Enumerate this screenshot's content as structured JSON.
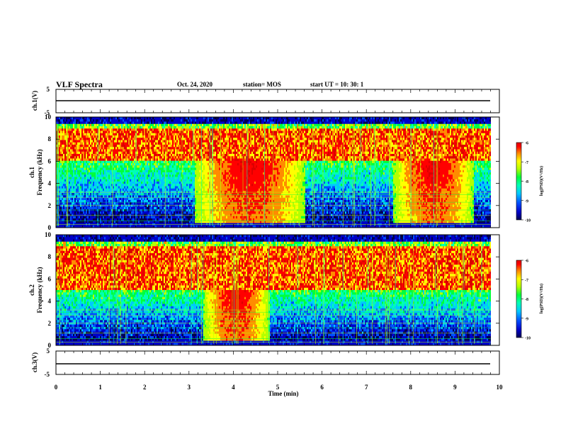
{
  "header": {
    "title": "VLF Spectra",
    "date": "Oct. 24, 2020",
    "station": "station= MOS",
    "start_time": "start  UT =   10: 30: 1"
  },
  "chart_data": [
    {
      "type": "line",
      "panel": "ch1-voltage",
      "ylabel": "ch.1(V)",
      "ylim": [
        -5,
        5
      ],
      "yticks": [
        "5",
        "-5"
      ],
      "xlim": [
        0,
        10
      ],
      "series": [
        {
          "x": [
            0,
            9.8
          ],
          "y": [
            0,
            0
          ]
        }
      ]
    },
    {
      "type": "heatmap",
      "panel": "ch1-spectrogram",
      "ylabel": "ch.1\nFrequency (kHz)",
      "ylim": [
        0,
        10
      ],
      "yticks": [
        "0",
        "2",
        "4",
        "6",
        "8",
        "10"
      ],
      "xlim": [
        0,
        9.8
      ],
      "colorbar": {
        "label": "log(PSD)(V²/Hz)",
        "range": [
          -10,
          -6
        ],
        "ticks": [
          "-6",
          "-7",
          "-8",
          "-9",
          "-10"
        ]
      },
      "description_values": {
        "dominant_band_khz": [
          6,
          9
        ],
        "enhanced_low_freq_intervals_min": [
          [
            3.1,
            5.6
          ],
          [
            7.6,
            9.4
          ]
        ]
      }
    },
    {
      "type": "heatmap",
      "panel": "ch2-spectrogram",
      "ylabel": "ch.2\nFrequency (kHz)",
      "ylim": [
        0,
        10
      ],
      "yticks": [
        "0",
        "2",
        "4",
        "6",
        "8",
        "10"
      ],
      "xlim": [
        0,
        9.8
      ],
      "colorbar": {
        "label": "log(PSD)(V²/Hz)",
        "range": [
          -10,
          -6
        ],
        "ticks": [
          "-6",
          "-7",
          "-8",
          "-9",
          "-10"
        ]
      },
      "description_values": {
        "dominant_band_khz": [
          5,
          9
        ],
        "enhanced_low_freq_intervals_min": [
          [
            3.3,
            4.8
          ]
        ]
      }
    },
    {
      "type": "line",
      "panel": "ch3-voltage",
      "ylabel": "ch.3(V)",
      "ylim": [
        -5,
        5
      ],
      "yticks": [
        "5",
        "-5"
      ],
      "xlim": [
        0,
        10
      ],
      "series": [
        {
          "x": [
            0,
            9.8
          ],
          "y": [
            -1.5,
            -1.5
          ]
        }
      ]
    }
  ],
  "xaxis": {
    "label": "Time (min)",
    "ticks": [
      0,
      1,
      2,
      3,
      4,
      5,
      6,
      7,
      8,
      9,
      10
    ],
    "range": [
      0,
      10
    ]
  },
  "colors": {
    "colormap": [
      "#000050",
      "#0000c8",
      "#0050ff",
      "#00c8ff",
      "#00ffb4",
      "#00ff3c",
      "#b4ff00",
      "#ffff00",
      "#ff8c00",
      "#ff0000",
      "#dc0000"
    ]
  }
}
